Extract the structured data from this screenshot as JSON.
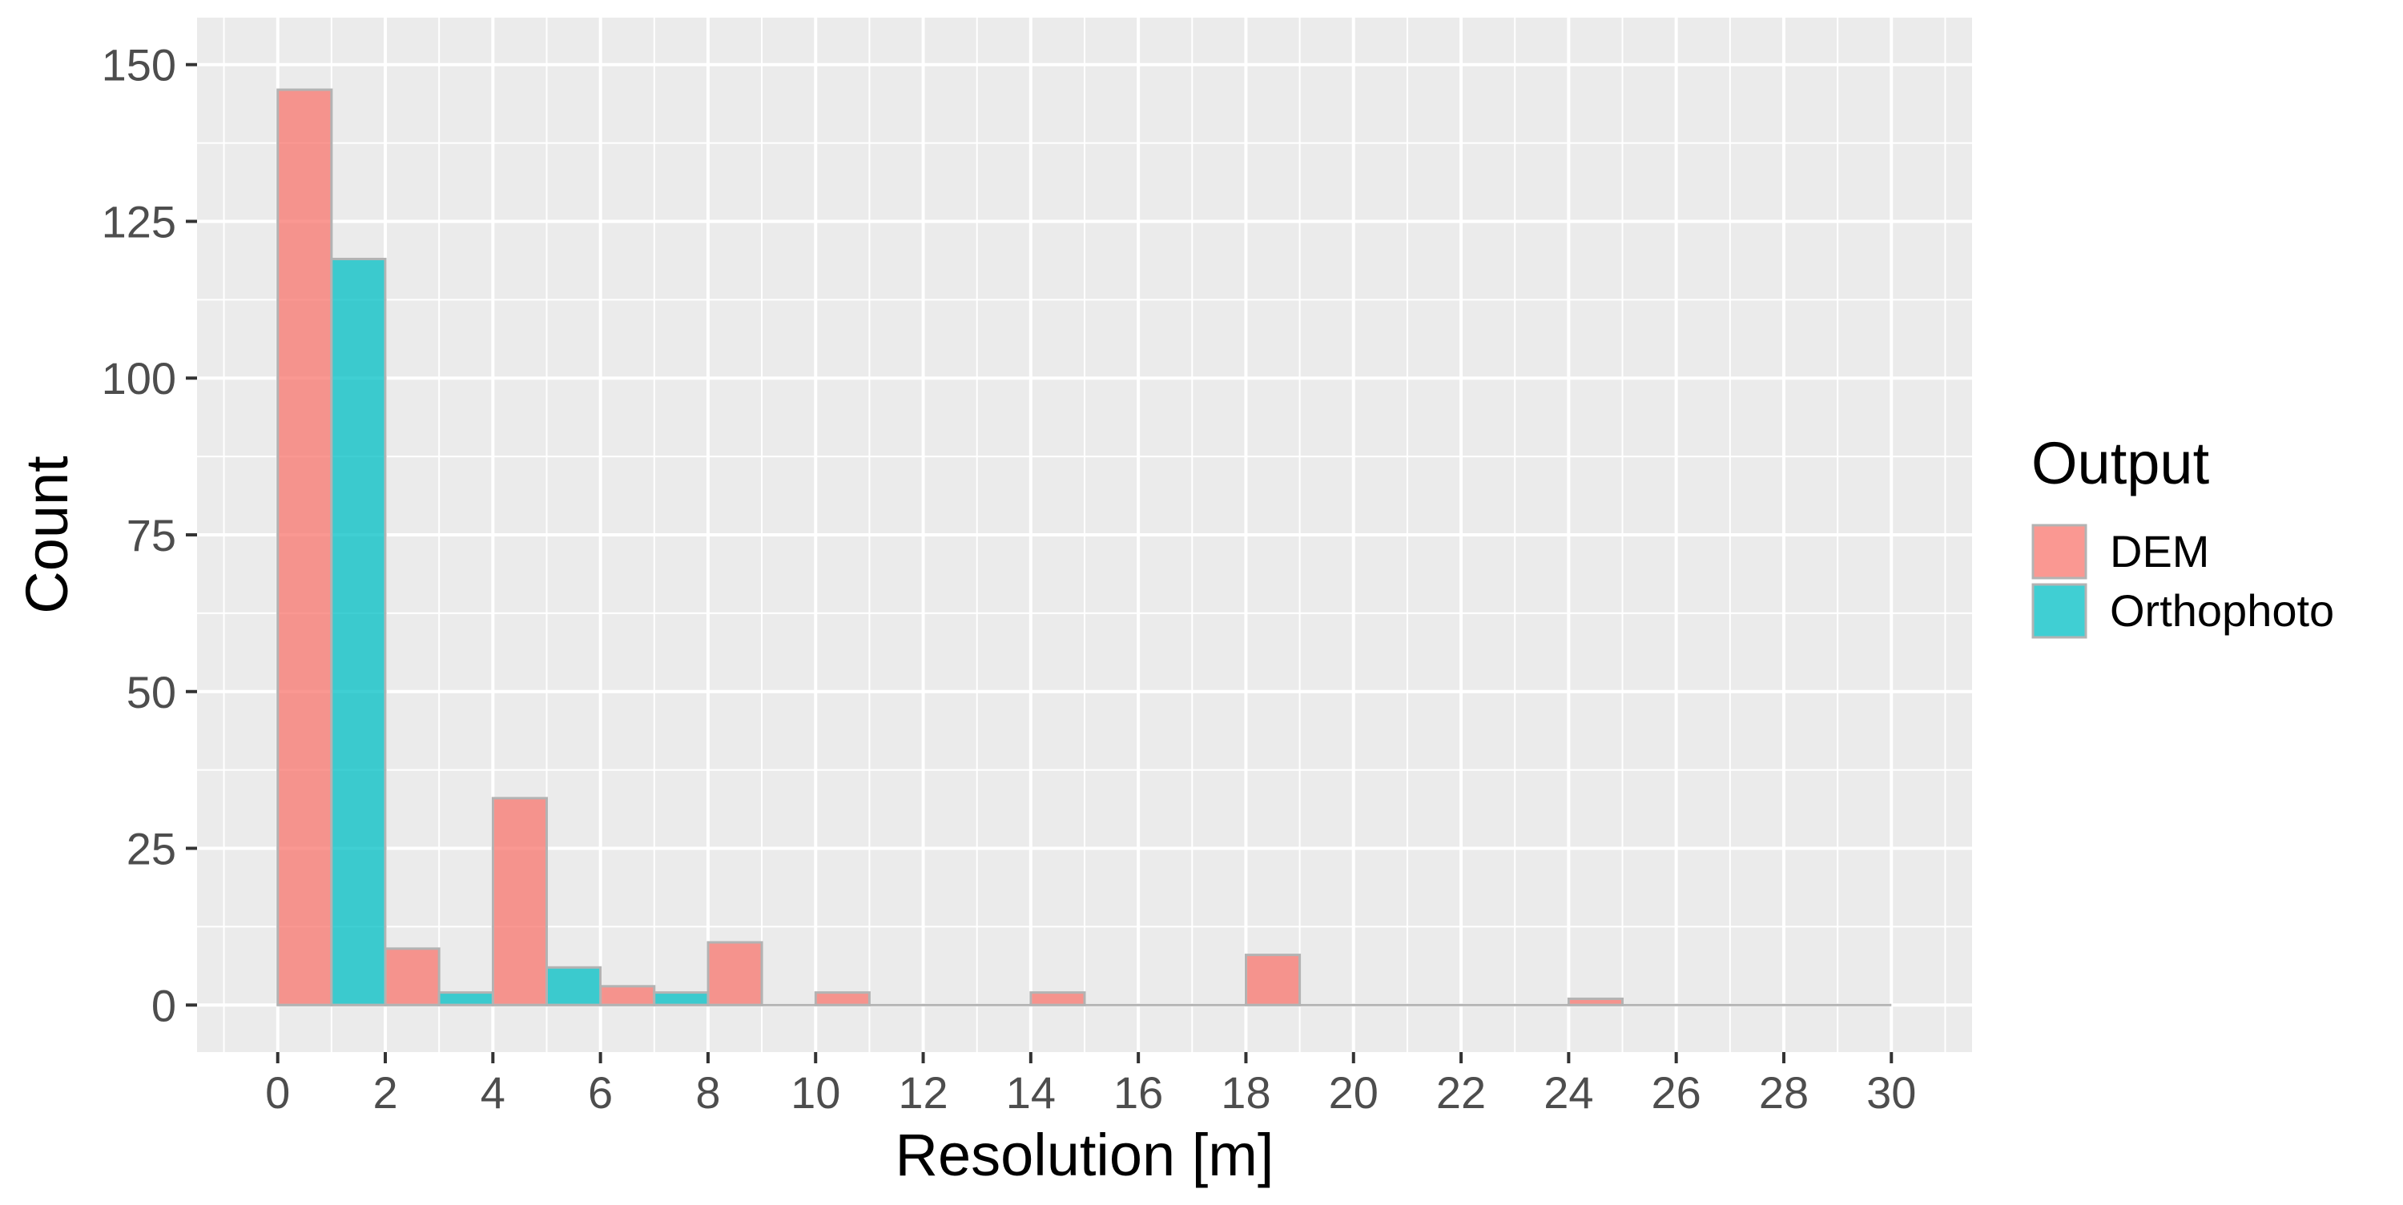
{
  "chart_data": {
    "type": "bar",
    "xlabel": "Resolution [m]",
    "ylabel": "Count",
    "xlim": [
      -1.5,
      31.5
    ],
    "ylim": [
      -7.5,
      157.5
    ],
    "x_ticks": [
      "0",
      "2",
      "4",
      "6",
      "8",
      "10",
      "12",
      "14",
      "16",
      "18",
      "20",
      "22",
      "24",
      "26",
      "28",
      "30"
    ],
    "y_ticks": [
      "0",
      "25",
      "50",
      "75",
      "100",
      "125",
      "150"
    ],
    "bin_width": 1,
    "bin_starts": [
      0,
      1,
      2,
      3,
      4,
      5,
      6,
      7,
      8,
      9,
      10,
      11,
      12,
      13,
      14,
      15,
      16,
      17,
      18,
      19,
      20,
      21,
      22,
      23,
      24,
      25,
      26,
      27,
      28,
      29
    ],
    "series": [
      {
        "name": "DEM",
        "color": "#F8766D",
        "values": [
          146,
          0,
          9,
          0,
          33,
          0,
          3,
          0,
          10,
          0,
          2,
          0,
          0,
          0,
          2,
          0,
          0,
          0,
          8,
          0,
          0,
          0,
          0,
          0,
          1,
          0,
          0,
          0,
          0,
          0
        ]
      },
      {
        "name": "Orthophoto",
        "color": "#00BFC4",
        "values": [
          0,
          119,
          0,
          2,
          0,
          6,
          0,
          2,
          0,
          0,
          0,
          0,
          0,
          0,
          0,
          0,
          0,
          0,
          0,
          0,
          0,
          0,
          0,
          0,
          0,
          0,
          0,
          0,
          0,
          0
        ]
      }
    ],
    "legend": {
      "title": "Output",
      "position": "right",
      "items": [
        "DEM",
        "Orthophoto"
      ]
    },
    "grid": true,
    "panel_background": "#EBEBEB",
    "bar_outline": "#B3B3B3"
  }
}
